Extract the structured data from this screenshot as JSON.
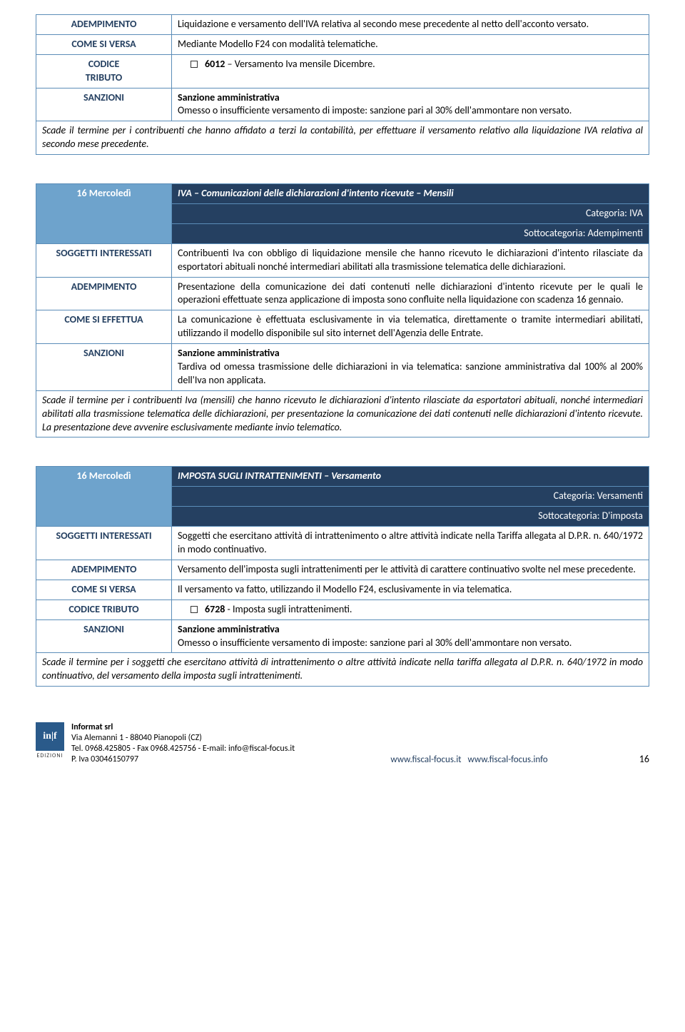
{
  "block1": {
    "rows": {
      "adempimento": {
        "label": "ADEMPIMENTO",
        "text": "Liquidazione e versamento dell'IVA relativa al secondo mese precedente al netto dell'acconto versato."
      },
      "come_si_versa": {
        "label": "COME SI VERSA",
        "text": "Mediante Modello F24 con modalità telematiche."
      },
      "codice_tributo": {
        "label1": "CODICE",
        "label2": "TRIBUTO",
        "code_bold": "6012",
        "code_rest": " – Versamento Iva mensile Dicembre."
      },
      "sanzioni": {
        "label": "SANZIONI",
        "title": "Sanzione amministrativa",
        "text": "Omesso o insufficiente versamento di imposte: sanzione pari al 30% dell'ammontare non versato."
      }
    },
    "footer": "Scade il termine per i contribuenti che hanno affidato a terzi la contabilità, per effettuare il versamento relativo alla liquidazione IVA relativa al secondo mese precedente."
  },
  "block2": {
    "date": "16 Mercoledì",
    "title": "IVA – Comunicazioni delle dichiarazioni d'intento ricevute – Mensili",
    "categoria_label": "Categoria: ",
    "categoria": "IVA",
    "sottocategoria_label": "Sottocategoria: ",
    "sottocategoria": " Adempimenti",
    "rows": {
      "soggetti": {
        "label": "SOGGETTI INTERESSATI",
        "text": "Contribuenti Iva con obbligo di liquidazione mensile che hanno ricevuto le dichiarazioni d'intento rilasciate da esportatori abituali nonché intermediari abilitati alla trasmissione telematica delle dichiarazioni."
      },
      "adempimento": {
        "label": "ADEMPIMENTO",
        "text": "Presentazione della comunicazione dei dati contenuti nelle dichiarazioni d'intento ricevute per le quali le operazioni effettuate senza applicazione di imposta sono confluite nella liquidazione con scadenza 16 gennaio."
      },
      "come_si_effettua": {
        "label": "COME SI EFFETTUA",
        "text": "La comunicazione è effettuata esclusivamente in via telematica, direttamente o tramite intermediari abilitati, utilizzando il modello disponibile sul sito internet dell'Agenzia delle Entrate."
      },
      "sanzioni": {
        "label": "SANZIONI",
        "title": "Sanzione amministrativa",
        "text": "Tardiva od omessa trasmissione delle dichiarazioni in via telematica: sanzione amministrativa dal 100% al 200% dell'Iva non applicata."
      }
    },
    "footer": "Scade il termine per i contribuenti Iva (mensili) che hanno ricevuto le dichiarazioni d'intento rilasciate da esportatori abituali, nonché intermediari abilitati alla trasmissione telematica delle dichiarazioni, per presentazione la comunicazione dei dati contenuti nelle dichiarazioni d'intento ricevute. La presentazione deve avvenire esclusivamente mediante invio telematico."
  },
  "block3": {
    "date": "16 Mercoledì",
    "title": "IMPOSTA SUGLI INTRATTENIMENTI – Versamento",
    "categoria_label": "Categoria: ",
    "categoria": "Versamenti",
    "sottocategoria_label": "Sottocategoria: ",
    "sottocategoria": "D'imposta",
    "rows": {
      "soggetti": {
        "label": "SOGGETTI INTERESSATI",
        "text": "Soggetti che esercitano attività di intrattenimento o altre attività indicate nella Tariffa allegata al D.P.R. n. 640/1972 in modo continuativo."
      },
      "adempimento": {
        "label": "ADEMPIMENTO",
        "text": "Versamento dell'imposta sugli intrattenimenti per le attività di carattere continuativo svolte nel mese precedente."
      },
      "come_si_versa": {
        "label": "COME SI VERSA",
        "text": "Il versamento va fatto, utilizzando il Modello F24, esclusivamente in via telematica."
      },
      "codice_tributo": {
        "label": "CODICE TRIBUTO",
        "code_bold": "6728",
        "code_rest": " - Imposta sugli intrattenimenti."
      },
      "sanzioni": {
        "label": "SANZIONI",
        "title": "Sanzione amministrativa",
        "text": "Omesso o insufficiente versamento di imposte: sanzione pari al 30% dell'ammontare non versato."
      }
    },
    "footer": "Scade il termine per i soggetti che esercitano attività di intrattenimento o altre attività indicate nella tariffa allegata al D.P.R. n. 640/1972 in modo continuativo, del versamento della imposta sugli intrattenimenti."
  },
  "footer": {
    "logo_text": "in|f",
    "edizioni": "EDIZIONI",
    "company": "Informat srl",
    "address": "Via Alemanni 1 - 88040 Pianopoli (CZ)",
    "tel": "Tel. 0968.425805 - Fax 0968.425756 - E-mail: info@fiscal-focus.it",
    "piva": "P. Iva 03046150797",
    "link1": "www.fiscal-focus.it",
    "link2": "www.fiscal-focus.info",
    "page": "16"
  }
}
